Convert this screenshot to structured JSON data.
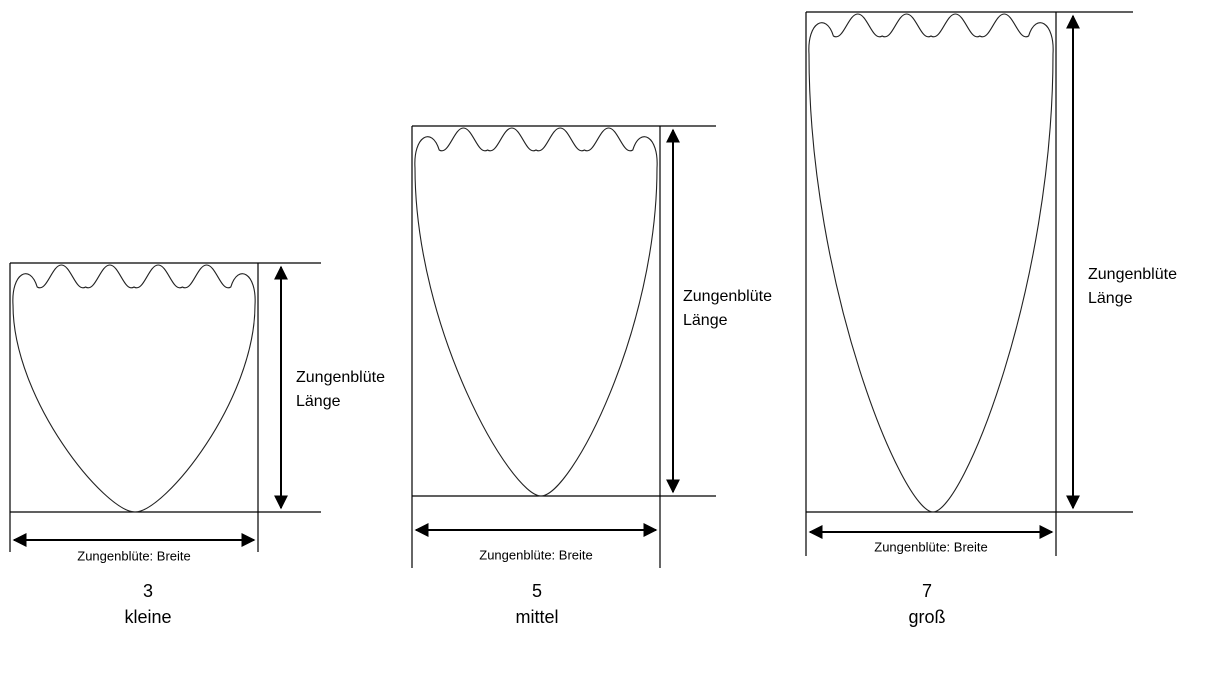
{
  "figures": [
    {
      "score": "3",
      "size": "kleine",
      "length_label": [
        "Zungenblüte",
        "Länge"
      ],
      "width_label": "Zungenblüte: Breite"
    },
    {
      "score": "5",
      "size": "mittel",
      "length_label": [
        "Zungenblüte",
        "Länge"
      ],
      "width_label": "Zungenblüte: Breite"
    },
    {
      "score": "7",
      "size": "groß",
      "length_label": [
        "Zungenblüte",
        "Länge"
      ],
      "width_label": "Zungenblüte: Breite"
    }
  ]
}
